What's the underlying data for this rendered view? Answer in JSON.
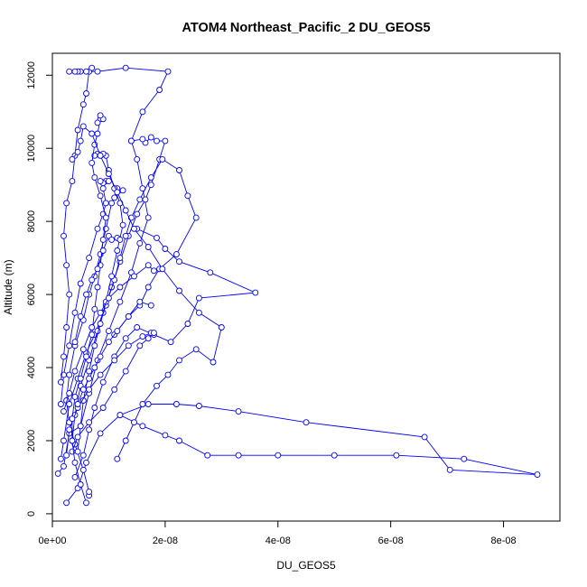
{
  "chart_data": {
    "type": "line",
    "title": "ATOM4 Northeast_Pacific_2 DU_GEOS5",
    "xlabel": "DU_GEOS5",
    "ylabel": "Altitude (m)",
    "xlim": [
      0,
      9e-08
    ],
    "ylim": [
      -200,
      12600
    ],
    "x_ticks": [
      {
        "value": 0,
        "label": "0e+00"
      },
      {
        "value": 2e-08,
        "label": "2e-08"
      },
      {
        "value": 4e-08,
        "label": "4e-08"
      },
      {
        "value": 6e-08,
        "label": "6e-08"
      },
      {
        "value": 8e-08,
        "label": "8e-08"
      }
    ],
    "y_ticks": [
      {
        "value": 0,
        "label": "0"
      },
      {
        "value": 2000,
        "label": "2000"
      },
      {
        "value": 4000,
        "label": "4000"
      },
      {
        "value": 6000,
        "label": "6000"
      },
      {
        "value": 8000,
        "label": "8000"
      },
      {
        "value": 10000,
        "label": "10000"
      },
      {
        "value": 12000,
        "label": "12000"
      }
    ],
    "grid": false,
    "legend": "none",
    "series_color": "#0000ff",
    "series": [
      {
        "points": [
          [
            1e-09,
            1100
          ],
          [
            2e-09,
            1300
          ],
          [
            3e-09,
            2200
          ],
          [
            5e-09,
            2400
          ],
          [
            6.5e-09,
            3300
          ],
          [
            8e-09,
            4200
          ],
          [
            1e-08,
            5000
          ],
          [
            1.2e-08,
            5800
          ],
          [
            1.4e-08,
            6600
          ],
          [
            1.55e-08,
            7400
          ],
          [
            1.7e-08,
            8100
          ],
          [
            1.6e-08,
            8900
          ],
          [
            1.5e-08,
            9700
          ],
          [
            1.4e-08,
            10200
          ],
          [
            1.6e-08,
            11000
          ],
          [
            1.9e-08,
            11600
          ],
          [
            2.05e-08,
            12100
          ],
          [
            1.3e-08,
            12200
          ],
          [
            8e-09,
            12100
          ],
          [
            3e-09,
            12100
          ]
        ]
      },
      {
        "points": [
          [
            2.5e-09,
            300
          ],
          [
            4.5e-09,
            700
          ],
          [
            6e-09,
            1400
          ],
          [
            8.5e-09,
            2200
          ],
          [
            1.2e-08,
            2700
          ],
          [
            1.7e-08,
            3000
          ],
          [
            2.2e-08,
            3000
          ],
          [
            2.6e-08,
            2950
          ],
          [
            3.3e-08,
            2800
          ],
          [
            4.5e-08,
            2500
          ],
          [
            6.6e-08,
            2100
          ],
          [
            7.05e-08,
            1200
          ],
          [
            8.6e-08,
            1070
          ],
          [
            7.3e-08,
            1500
          ],
          [
            6.1e-08,
            1600
          ],
          [
            5e-08,
            1600
          ],
          [
            4e-08,
            1600
          ],
          [
            3.3e-08,
            1600
          ],
          [
            2.75e-08,
            1600
          ],
          [
            2.25e-08,
            2000
          ],
          [
            2e-08,
            2150
          ],
          [
            1.6e-08,
            2400
          ],
          [
            1.2e-08,
            2700
          ]
        ]
      },
      {
        "points": [
          [
            6.5e-09,
            500
          ],
          [
            6.5e-09,
            600
          ],
          [
            5.5e-09,
            1200
          ],
          [
            4e-09,
            1900
          ],
          [
            3e-09,
            2500
          ],
          [
            2.5e-09,
            3100
          ],
          [
            3e-09,
            3800
          ],
          [
            4e-09,
            4600
          ],
          [
            5.5e-09,
            5300
          ],
          [
            6.5e-09,
            6000
          ],
          [
            7.5e-09,
            6500
          ],
          [
            8.5e-09,
            7100
          ],
          [
            9.5e-09,
            7800
          ],
          [
            1.05e-08,
            8500
          ],
          [
            1.15e-08,
            8900
          ],
          [
            1.25e-08,
            8850
          ],
          [
            1.1e-08,
            8650
          ]
        ]
      },
      {
        "points": [
          [
            1.5e-09,
            1500
          ],
          [
            2e-09,
            2000
          ],
          [
            3e-09,
            3000
          ],
          [
            4.5e-09,
            3700
          ],
          [
            6e-09,
            4400
          ],
          [
            7.5e-09,
            4900
          ],
          [
            9e-09,
            5500
          ],
          [
            1.05e-08,
            6200
          ],
          [
            1.2e-08,
            6900
          ],
          [
            1.35e-08,
            7600
          ],
          [
            1.5e-08,
            8200
          ],
          [
            1.65e-08,
            8600
          ],
          [
            1.75e-08,
            9000
          ],
          [
            1.9e-08,
            9700
          ],
          [
            2e-08,
            10200
          ],
          [
            1.85e-08,
            10200
          ],
          [
            1.75e-08,
            10300
          ],
          [
            1.65e-08,
            10150
          ],
          [
            1.6e-08,
            10250
          ],
          [
            1.4e-08,
            10200
          ]
        ]
      },
      {
        "points": [
          [
            4e-09,
            1000
          ],
          [
            5.5e-09,
            1600
          ],
          [
            6.5e-09,
            2300
          ],
          [
            7.5e-09,
            2900
          ],
          [
            9e-09,
            3600
          ],
          [
            1.1e-08,
            4300
          ],
          [
            1.3e-08,
            4800
          ],
          [
            1.5e-08,
            5100
          ],
          [
            1.8e-08,
            4900
          ],
          [
            2.1e-08,
            4700
          ],
          [
            2.4e-08,
            5200
          ],
          [
            2.6e-08,
            5900
          ],
          [
            3.6e-08,
            6050
          ],
          [
            2.8e-08,
            6600
          ],
          [
            2.25e-08,
            6900
          ],
          [
            2e-08,
            7250
          ],
          [
            1.85e-08,
            7550
          ],
          [
            1.5e-08,
            7800
          ]
        ]
      },
      {
        "points": [
          [
            1.5e-09,
            3000
          ],
          [
            2e-09,
            3800
          ],
          [
            3e-09,
            4600
          ],
          [
            4e-09,
            5500
          ],
          [
            5e-09,
            6300
          ],
          [
            6.5e-09,
            7000
          ],
          [
            8e-09,
            7800
          ],
          [
            9e-09,
            8200
          ],
          [
            9.5e-09,
            8500
          ],
          [
            9e-09,
            8900
          ],
          [
            9.5e-09,
            9100
          ],
          [
            1e-08,
            9100
          ],
          [
            9e-09,
            9050
          ],
          [
            8.5e-09,
            9100
          ]
        ]
      },
      {
        "points": [
          [
            3.5e-09,
            2000
          ],
          [
            4e-09,
            2700
          ],
          [
            5e-09,
            3500
          ],
          [
            6.5e-09,
            4200
          ],
          [
            8e-09,
            5000
          ],
          [
            9.5e-09,
            5700
          ],
          [
            1.1e-08,
            6400
          ],
          [
            1.2e-08,
            7000
          ],
          [
            1.3e-08,
            7600
          ],
          [
            1.4e-08,
            8100
          ],
          [
            1.55e-08,
            8600
          ],
          [
            1.75e-08,
            9200
          ],
          [
            1.95e-08,
            9700
          ],
          [
            2.25e-08,
            9400
          ],
          [
            2.4e-08,
            8700
          ],
          [
            2.55e-08,
            8100
          ],
          [
            2.2e-08,
            7100
          ],
          [
            1.9e-08,
            6700
          ],
          [
            1.7e-08,
            6200
          ],
          [
            1.55e-08,
            5700
          ],
          [
            1.35e-08,
            5400
          ],
          [
            1.1e-08,
            4900
          ]
        ]
      },
      {
        "points": [
          [
            4.5e-09,
            1700
          ],
          [
            5e-09,
            2400
          ],
          [
            5.5e-09,
            3100
          ],
          [
            6.5e-09,
            3900
          ],
          [
            7.5e-09,
            4600
          ],
          [
            8.5e-09,
            5200
          ],
          [
            9.5e-09,
            5800
          ],
          [
            1.05e-08,
            6500
          ],
          [
            1.15e-08,
            7200
          ],
          [
            1.25e-08,
            7900
          ],
          [
            1.2e-08,
            8500
          ],
          [
            1.1e-08,
            8900
          ],
          [
            1e-08,
            9400
          ],
          [
            9.5e-09,
            9800
          ],
          [
            9e-09,
            9850
          ],
          [
            8.5e-09,
            9800
          ],
          [
            8e-09,
            9850
          ],
          [
            7.5e-09,
            9800
          ]
        ]
      },
      {
        "points": [
          [
            2.5e-09,
            1600
          ],
          [
            3e-09,
            2300
          ],
          [
            4.5e-09,
            2900
          ],
          [
            6.5e-09,
            3400
          ],
          [
            8.5e-09,
            3800
          ],
          [
            1.1e-08,
            4200
          ],
          [
            1.35e-08,
            4600
          ],
          [
            1.6e-08,
            4850
          ],
          [
            1.75e-08,
            4950
          ],
          [
            1.8e-08,
            4950
          ],
          [
            1.7e-08,
            4800
          ],
          [
            1.55e-08,
            4600
          ],
          [
            1.3e-08,
            3900
          ],
          [
            1.1e-08,
            3400
          ],
          [
            9e-09,
            2900
          ],
          [
            6.5e-09,
            2500
          ],
          [
            4.5e-09,
            2100
          ],
          [
            3.5e-09,
            1700
          ]
        ]
      },
      {
        "points": [
          [
            6e-09,
            300
          ],
          [
            5e-09,
            800
          ],
          [
            4e-09,
            1400
          ],
          [
            3.5e-09,
            2000
          ],
          [
            3.5e-09,
            2600
          ],
          [
            4e-09,
            3200
          ],
          [
            5e-09,
            3700
          ],
          [
            6e-09,
            4300
          ],
          [
            7e-09,
            4900
          ],
          [
            7.5e-09,
            5600
          ],
          [
            8e-09,
            6200
          ],
          [
            8.5e-09,
            6800
          ],
          [
            9e-09,
            7500
          ],
          [
            9.5e-09,
            8100
          ],
          [
            8.5e-09,
            8700
          ],
          [
            7.5e-09,
            9200
          ],
          [
            7e-09,
            9600
          ],
          [
            7.5e-09,
            10100
          ],
          [
            8e-09,
            10400
          ],
          [
            8.5e-09,
            10800
          ],
          [
            9e-09,
            10800
          ],
          [
            8.5e-09,
            10900
          ],
          [
            8e-09,
            10700
          ]
        ]
      },
      {
        "points": [
          [
            1.5e-09,
            3600
          ],
          [
            2e-09,
            4300
          ],
          [
            2.5e-09,
            5100
          ],
          [
            3e-09,
            6000
          ],
          [
            2.5e-09,
            6800
          ],
          [
            2e-09,
            7600
          ],
          [
            2.5e-09,
            8500
          ],
          [
            3.5e-09,
            9100
          ],
          [
            4e-09,
            9800
          ],
          [
            4.5e-09,
            10500
          ],
          [
            5.5e-09,
            11200
          ],
          [
            6e-09,
            11500
          ],
          [
            6.5e-09,
            12100
          ],
          [
            7e-09,
            12200
          ],
          [
            6e-09,
            12100
          ],
          [
            5e-09,
            12100
          ],
          [
            4.5e-09,
            12100
          ],
          [
            4e-09,
            12100
          ]
        ]
      },
      {
        "points": [
          [
            1.15e-08,
            1500
          ],
          [
            1.3e-08,
            2000
          ],
          [
            1.45e-08,
            2500
          ],
          [
            1.6e-08,
            3000
          ],
          [
            1.85e-08,
            3500
          ],
          [
            2.05e-08,
            3800
          ],
          [
            2.25e-08,
            4200
          ],
          [
            2.55e-08,
            4500
          ],
          [
            2.85e-08,
            4150
          ],
          [
            3e-08,
            5100
          ],
          [
            2.6e-08,
            5500
          ],
          [
            2.25e-08,
            6100
          ],
          [
            1.95e-08,
            6700
          ],
          [
            1.7e-08,
            7300
          ],
          [
            1.45e-08,
            7800
          ],
          [
            1.3e-08,
            8300
          ],
          [
            1.15e-08,
            8800
          ],
          [
            1e-08,
            9300
          ],
          [
            8.5e-09,
            9800
          ],
          [
            7e-09,
            10400
          ],
          [
            5.5e-09,
            10600
          ],
          [
            5e-09,
            10200
          ],
          [
            4.5e-09,
            9900
          ],
          [
            3.5e-09,
            9700
          ]
        ]
      },
      {
        "points": [
          [
            4e-09,
            4700
          ],
          [
            5e-09,
            5400
          ],
          [
            6e-09,
            6000
          ],
          [
            7e-09,
            6400
          ],
          [
            8e-09,
            6700
          ],
          [
            9e-09,
            7200
          ],
          [
            1e-08,
            7600
          ],
          [
            1.05e-08,
            7500
          ],
          [
            1.15e-08,
            7550
          ],
          [
            1.2e-08,
            7500
          ]
        ]
      },
      {
        "points": [
          [
            2e-09,
            2800
          ],
          [
            3e-09,
            3300
          ],
          [
            4e-09,
            3900
          ],
          [
            5.5e-09,
            4500
          ],
          [
            7e-09,
            5100
          ],
          [
            8.5e-09,
            5500
          ],
          [
            1e-08,
            5900
          ],
          [
            1.2e-08,
            6200
          ],
          [
            1.45e-08,
            6500
          ],
          [
            1.7e-08,
            6800
          ],
          [
            1.8e-08,
            6650
          ]
        ]
      },
      {
        "points": [
          [
            4.5e-09,
            3000
          ],
          [
            5.5e-09,
            3400
          ],
          [
            6.5e-09,
            3700
          ],
          [
            7.5e-09,
            4000
          ],
          [
            8.5e-09,
            4300
          ],
          [
            1e-08,
            4700
          ],
          [
            1.15e-08,
            5000
          ],
          [
            1.35e-08,
            5400
          ],
          [
            1.55e-08,
            5800
          ],
          [
            1.75e-08,
            5700
          ]
        ]
      }
    ]
  }
}
